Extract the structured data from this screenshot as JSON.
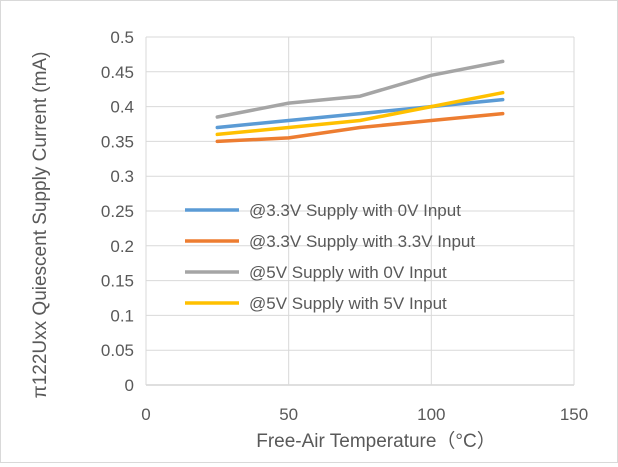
{
  "chart_data": {
    "type": "line",
    "title": "",
    "xlabel": "Free-Air Temperature（°C）",
    "ylabel": "π122Uxx Quiescent Supply Current (mA)",
    "xlim": [
      0,
      150
    ],
    "ylim": [
      0,
      0.5
    ],
    "xticks": [
      0,
      50,
      100,
      150
    ],
    "yticks": [
      0,
      0.05,
      0.1,
      0.15,
      0.2,
      0.25,
      0.3,
      0.35,
      0.4,
      0.45,
      0.5
    ],
    "grid": true,
    "legend_position": "inside-lower-center",
    "x": [
      25,
      50,
      75,
      100,
      125
    ],
    "series": [
      {
        "name": "@3.3V Supply with 0V Input",
        "color": "#5b9bd5",
        "values": [
          0.37,
          0.38,
          0.39,
          0.4,
          0.41
        ]
      },
      {
        "name": "@3.3V Supply with 3.3V Input",
        "color": "#ed7d31",
        "values": [
          0.35,
          0.355,
          0.37,
          0.38,
          0.39
        ]
      },
      {
        "name": "@5V Supply with 0V Input",
        "color": "#a5a5a5",
        "values": [
          0.385,
          0.405,
          0.415,
          0.445,
          0.465
        ]
      },
      {
        "name": "@5V Supply with 5V Input",
        "color": "#ffc000",
        "values": [
          0.36,
          0.37,
          0.38,
          0.4,
          0.42
        ]
      }
    ]
  }
}
